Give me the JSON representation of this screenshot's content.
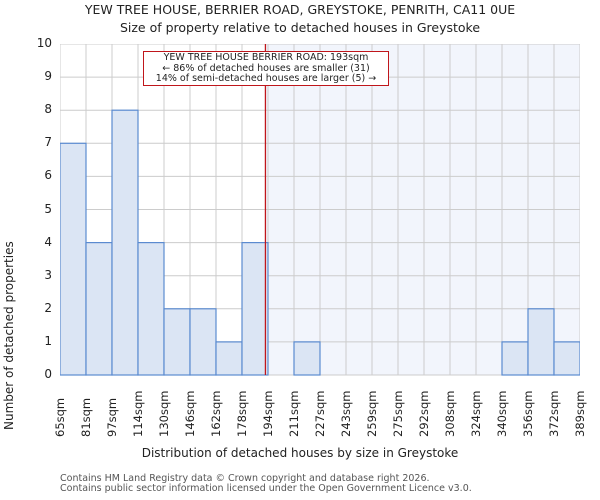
{
  "header": {
    "title": "YEW TREE HOUSE, BERRIER ROAD, GREYSTOKE, PENRITH, CA11 0UE",
    "subtitle": "Size of property relative to detached houses in Greystoke"
  },
  "annotation": {
    "line1": "YEW TREE HOUSE BERRIER ROAD: 193sqm",
    "line2": "← 86% of detached houses are smaller (31)",
    "line3": "14% of semi-detached houses are larger (5) →"
  },
  "axes": {
    "ylabel": "Number of detached properties",
    "xlabel": "Distribution of detached houses by size in Greystoke"
  },
  "footer": {
    "line1": "Contains HM Land Registry data © Crown copyright and database right 2026.",
    "line2": "Contains public sector information licensed under the Open Government Licence v3.0."
  },
  "colors": {
    "bar_fill": "#dbe5f4",
    "bar_edge": "#5b8bd0",
    "highlight_region": "#f2f5fc",
    "marker_line": "#c0161b",
    "grid": "#cccccc"
  },
  "chart_data": {
    "type": "bar",
    "title": "YEW TREE HOUSE, BERRIER ROAD, GREYSTOKE, PENRITH, CA11 0UE",
    "subtitle": "Size of property relative to detached houses in Greystoke",
    "xlabel": "Distribution of detached houses by size in Greystoke",
    "ylabel": "Number of detached properties",
    "categories": [
      "65sqm",
      "81sqm",
      "97sqm",
      "114sqm",
      "130sqm",
      "146sqm",
      "162sqm",
      "178sqm",
      "194sqm",
      "211sqm",
      "227sqm",
      "243sqm",
      "259sqm",
      "275sqm",
      "292sqm",
      "308sqm",
      "324sqm",
      "340sqm",
      "356sqm",
      "372sqm"
    ],
    "tick_labels": [
      "65sqm",
      "81sqm",
      "97sqm",
      "114sqm",
      "130sqm",
      "146sqm",
      "162sqm",
      "178sqm",
      "194sqm",
      "211sqm",
      "227sqm",
      "243sqm",
      "259sqm",
      "275sqm",
      "292sqm",
      "308sqm",
      "324sqm",
      "340sqm",
      "356sqm",
      "372sqm",
      "389sqm"
    ],
    "values": [
      7,
      4,
      8,
      4,
      2,
      2,
      1,
      4,
      0,
      1,
      0,
      0,
      0,
      0,
      0,
      0,
      0,
      1,
      2,
      1
    ],
    "ylim": [
      0,
      10
    ],
    "yticks": [
      0,
      1,
      2,
      3,
      4,
      5,
      6,
      7,
      8,
      9,
      10
    ],
    "grid": true,
    "marker": {
      "value_sqm": 193,
      "label": "YEW TREE HOUSE BERRIER ROAD: 193sqm"
    }
  }
}
